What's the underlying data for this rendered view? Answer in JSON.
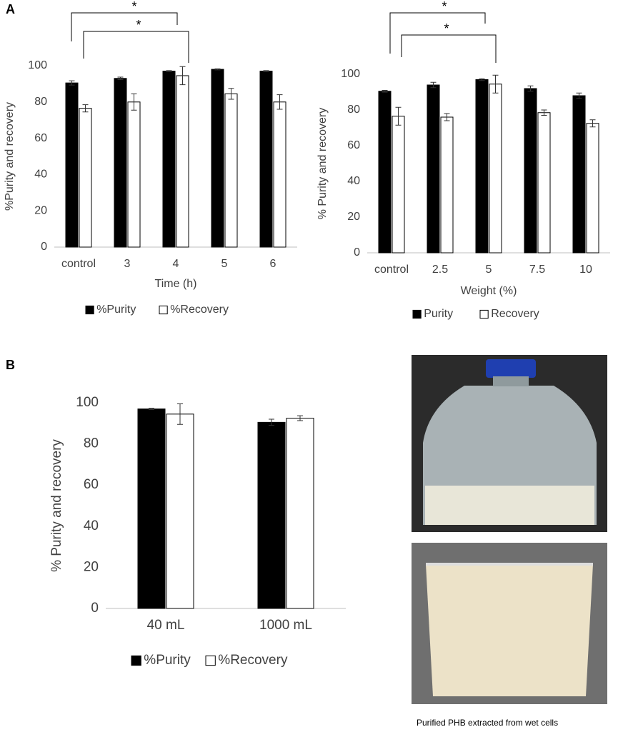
{
  "panels": [
    "A",
    "B"
  ],
  "caption": "Purified PHB extracted from wet cells",
  "chart_data": [
    {
      "type": "bar",
      "x_label": "Time  (h)",
      "y_label": "%Purity and recovery",
      "categories": [
        "control",
        "3",
        "4",
        "5",
        "6"
      ],
      "series": [
        {
          "name": "%Purity",
          "color": "#000000",
          "values": [
            90.5,
            93,
            97,
            98,
            97
          ],
          "errors": [
            1.2,
            0.7,
            0.3,
            0.3,
            0.3
          ]
        },
        {
          "name": "%Recovery",
          "color": "#ffffff",
          "values": [
            76.5,
            80,
            94.5,
            84.5,
            80
          ],
          "errors": [
            2,
            4.5,
            5,
            3,
            4
          ]
        }
      ],
      "ylim": [
        0,
        100
      ],
      "yticks": [
        0,
        20,
        40,
        60,
        80,
        100
      ],
      "annotations": [
        "*",
        "*"
      ]
    },
    {
      "type": "bar",
      "x_label": "Weight (%)",
      "y_label": "% Purity and recovery",
      "categories": [
        "control",
        "2.5",
        "5",
        "7.5",
        "10"
      ],
      "series": [
        {
          "name": "Purity",
          "color": "#000000",
          "values": [
            90.5,
            94,
            97,
            92,
            88
          ],
          "errors": [
            0.5,
            1.5,
            0.5,
            1.5,
            1.5
          ]
        },
        {
          "name": "Recovery",
          "color": "#ffffff",
          "values": [
            76.5,
            76,
            94.5,
            78.5,
            72.5
          ],
          "errors": [
            5,
            2,
            5,
            1.5,
            2
          ]
        }
      ],
      "ylim": [
        0,
        100
      ],
      "yticks": [
        0,
        20,
        40,
        60,
        80,
        100
      ],
      "annotations": [
        "*",
        "*"
      ]
    },
    {
      "type": "bar",
      "y_label": "% Purity and recovery",
      "categories": [
        "40 mL",
        "1000 mL"
      ],
      "series": [
        {
          "name": "%Purity",
          "color": "#000000",
          "values": [
            97,
            90.5
          ],
          "errors": [
            0.3,
            1.5
          ]
        },
        {
          "name": "%Recovery",
          "color": "#ffffff",
          "values": [
            94.5,
            92.5
          ],
          "errors": [
            5,
            1.2
          ]
        }
      ],
      "ylim": [
        0,
        100
      ],
      "yticks": [
        0,
        20,
        40,
        60,
        80,
        100
      ]
    }
  ]
}
